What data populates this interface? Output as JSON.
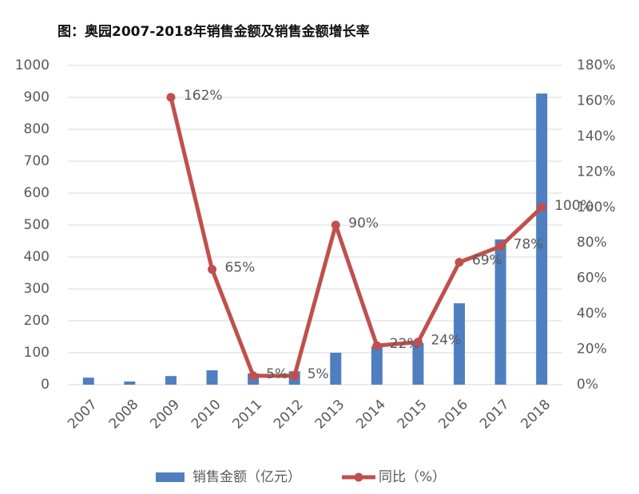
{
  "chart_data": {
    "type": "bar_line",
    "title": "图：奥园2007-2018年销售金额及销售金额增长率",
    "categories": [
      "2007",
      "2008",
      "2009",
      "2010",
      "2011",
      "2012",
      "2013",
      "2014",
      "2015",
      "2016",
      "2017",
      "2018"
    ],
    "series": [
      {
        "name": "销售金额（亿元）",
        "type": "bar",
        "color": "#4f7fc0",
        "values": [
          22,
          10,
          27,
          45,
          35,
          42,
          100,
          120,
          130,
          255,
          455,
          912
        ]
      },
      {
        "name": "同比（%）",
        "type": "line",
        "axis": "y2",
        "color": "#c0504d",
        "values": [
          null,
          null,
          162,
          65,
          5,
          5,
          90,
          22,
          24,
          69,
          78,
          100
        ],
        "value_labels": [
          null,
          null,
          "162%",
          "65%",
          "5%",
          "5%",
          "90%",
          "22%",
          "24%",
          "69%",
          "78%",
          "100%"
        ]
      }
    ],
    "ylim": [
      0,
      1000
    ],
    "yticks": [
      0,
      100,
      200,
      300,
      400,
      500,
      600,
      700,
      800,
      900,
      1000
    ],
    "y2lim": [
      0,
      180
    ],
    "y2ticks": [
      {
        "value": 0,
        "label": "0%"
      },
      {
        "value": 20,
        "label": "20%"
      },
      {
        "value": 40,
        "label": "40%"
      },
      {
        "value": 60,
        "label": "60%"
      },
      {
        "value": 80,
        "label": "80%"
      },
      {
        "value": 100,
        "label": "100%"
      },
      {
        "value": 120,
        "label": "120%"
      },
      {
        "value": 140,
        "label": "140%"
      },
      {
        "value": 160,
        "label": "160%"
      },
      {
        "value": 180,
        "label": "180%"
      }
    ],
    "grid": true,
    "legend": "bottom"
  }
}
